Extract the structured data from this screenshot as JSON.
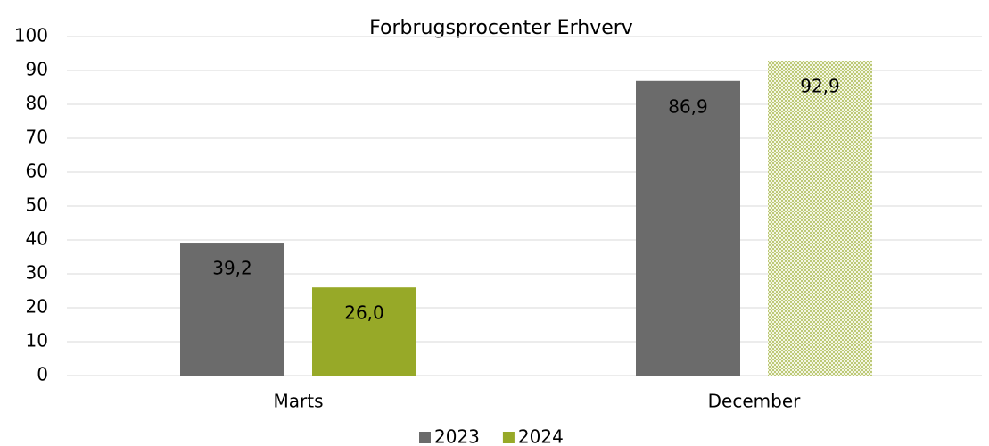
{
  "chart_data": {
    "type": "bar",
    "title": "Forbrugsprocenter Erhverv",
    "categories": [
      "Marts",
      "December"
    ],
    "series": [
      {
        "name": "2023",
        "color": "#6b6b6b",
        "values": [
          39.2,
          86.9
        ],
        "value_labels": [
          "39,2",
          "86,9"
        ],
        "patterned": [
          false,
          false
        ]
      },
      {
        "name": "2024",
        "color": "#97a928",
        "values": [
          26.0,
          92.9
        ],
        "value_labels": [
          "26,0",
          "92,9"
        ],
        "patterned": [
          false,
          true
        ]
      }
    ],
    "ylim": [
      0,
      100
    ],
    "yticks": [
      0,
      10,
      20,
      30,
      40,
      50,
      60,
      70,
      80,
      90,
      100
    ],
    "grid": true,
    "legend": "bottom"
  }
}
